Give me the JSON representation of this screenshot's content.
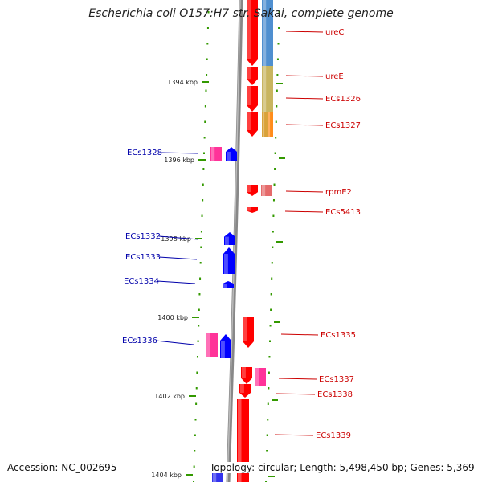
{
  "title": "Escherichia coli O157:H7 str. Sakai, complete genome",
  "footer": {
    "accession": "Accession: NC_002695",
    "summary": "Topology: circular; Length: 5,498,450 bp; Genes: 5,369"
  },
  "colors": {
    "forward_gene": "#ff0000",
    "reverse_gene": "#0000ff",
    "cds_pink": "#ff3399",
    "ticks": "#339900",
    "backbone": "#888888",
    "label_forward": "#cc0000",
    "label_reverse": "#0000aa"
  },
  "ticks": [
    {
      "label": "1394 kbp"
    },
    {
      "label": "1396 kbp"
    },
    {
      "label": "1398 kbp"
    },
    {
      "label": "1400 kbp"
    },
    {
      "label": "1402 kbp"
    },
    {
      "label": "1404 kbp"
    }
  ],
  "right_labels": [
    {
      "text": "ureC"
    },
    {
      "text": "ureE"
    },
    {
      "text": "ECs1326"
    },
    {
      "text": "ECs1327"
    },
    {
      "text": "rpmE2"
    },
    {
      "text": "ECs5413"
    },
    {
      "text": "ECs1335"
    },
    {
      "text": "ECs1337"
    },
    {
      "text": "ECs1338"
    },
    {
      "text": "ECs1339"
    }
  ],
  "left_labels": [
    {
      "text": "ECs1328"
    },
    {
      "text": "ECs1332"
    },
    {
      "text": "ECs1333"
    },
    {
      "text": "ECs1334"
    },
    {
      "text": "ECs1336"
    }
  ]
}
